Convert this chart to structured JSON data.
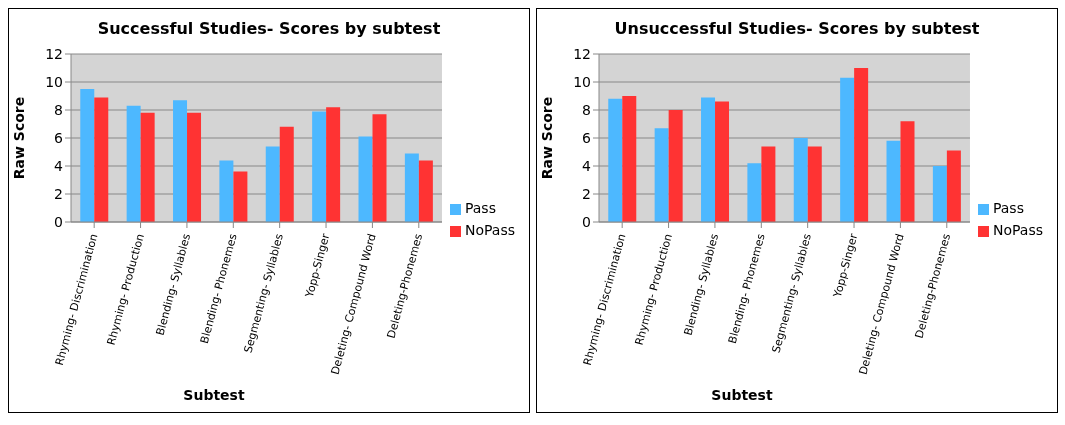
{
  "chart_data": [
    {
      "type": "bar",
      "title": "Successful Studies- Scores by subtest",
      "xlabel": "Subtest",
      "ylabel": "Raw Score",
      "categories": [
        "Rhyming- Discrimination",
        "Rhyming- Production",
        "Blending- Syllables",
        "Blending- Phonemes",
        "Segmenting- Syllables",
        "Yopp-Singer",
        "Deleting- Compound Word",
        "Deleting-Phonemes"
      ],
      "series": [
        {
          "name": "Pass",
          "color": "#4db8ff",
          "values": [
            9.5,
            8.3,
            8.7,
            4.4,
            5.4,
            7.9,
            6.1,
            4.9
          ]
        },
        {
          "name": "NoPass",
          "color": "#ff3333",
          "values": [
            8.9,
            7.8,
            7.8,
            3.6,
            6.8,
            8.2,
            7.7,
            4.4
          ]
        }
      ],
      "ylim": [
        0,
        12
      ],
      "yticks": [
        0,
        2,
        4,
        6,
        8,
        10,
        12
      ],
      "grid": "y",
      "legend": "right"
    },
    {
      "type": "bar",
      "title": "Unsuccessful Studies- Scores by subtest",
      "xlabel": "Subtest",
      "ylabel": "Raw Score",
      "categories": [
        "Rhyming- Discrimination",
        "Rhyming- Production",
        "Blending- Syllables",
        "Blending- Phonemes",
        "Segmenting- Syllables",
        "Yopp-Singer",
        "Deleting- Compound Word",
        "Deleting-Phonemes"
      ],
      "series": [
        {
          "name": "Pass",
          "color": "#4db8ff",
          "values": [
            8.8,
            6.7,
            8.9,
            4.2,
            6.0,
            10.3,
            5.8,
            4.0
          ]
        },
        {
          "name": "NoPass",
          "color": "#ff3333",
          "values": [
            9.0,
            8.0,
            8.6,
            5.4,
            5.4,
            11.0,
            7.2,
            5.1
          ]
        }
      ],
      "ylim": [
        0,
        12
      ],
      "yticks": [
        0,
        2,
        4,
        6,
        8,
        10,
        12
      ],
      "grid": "y",
      "legend": "right"
    }
  ]
}
